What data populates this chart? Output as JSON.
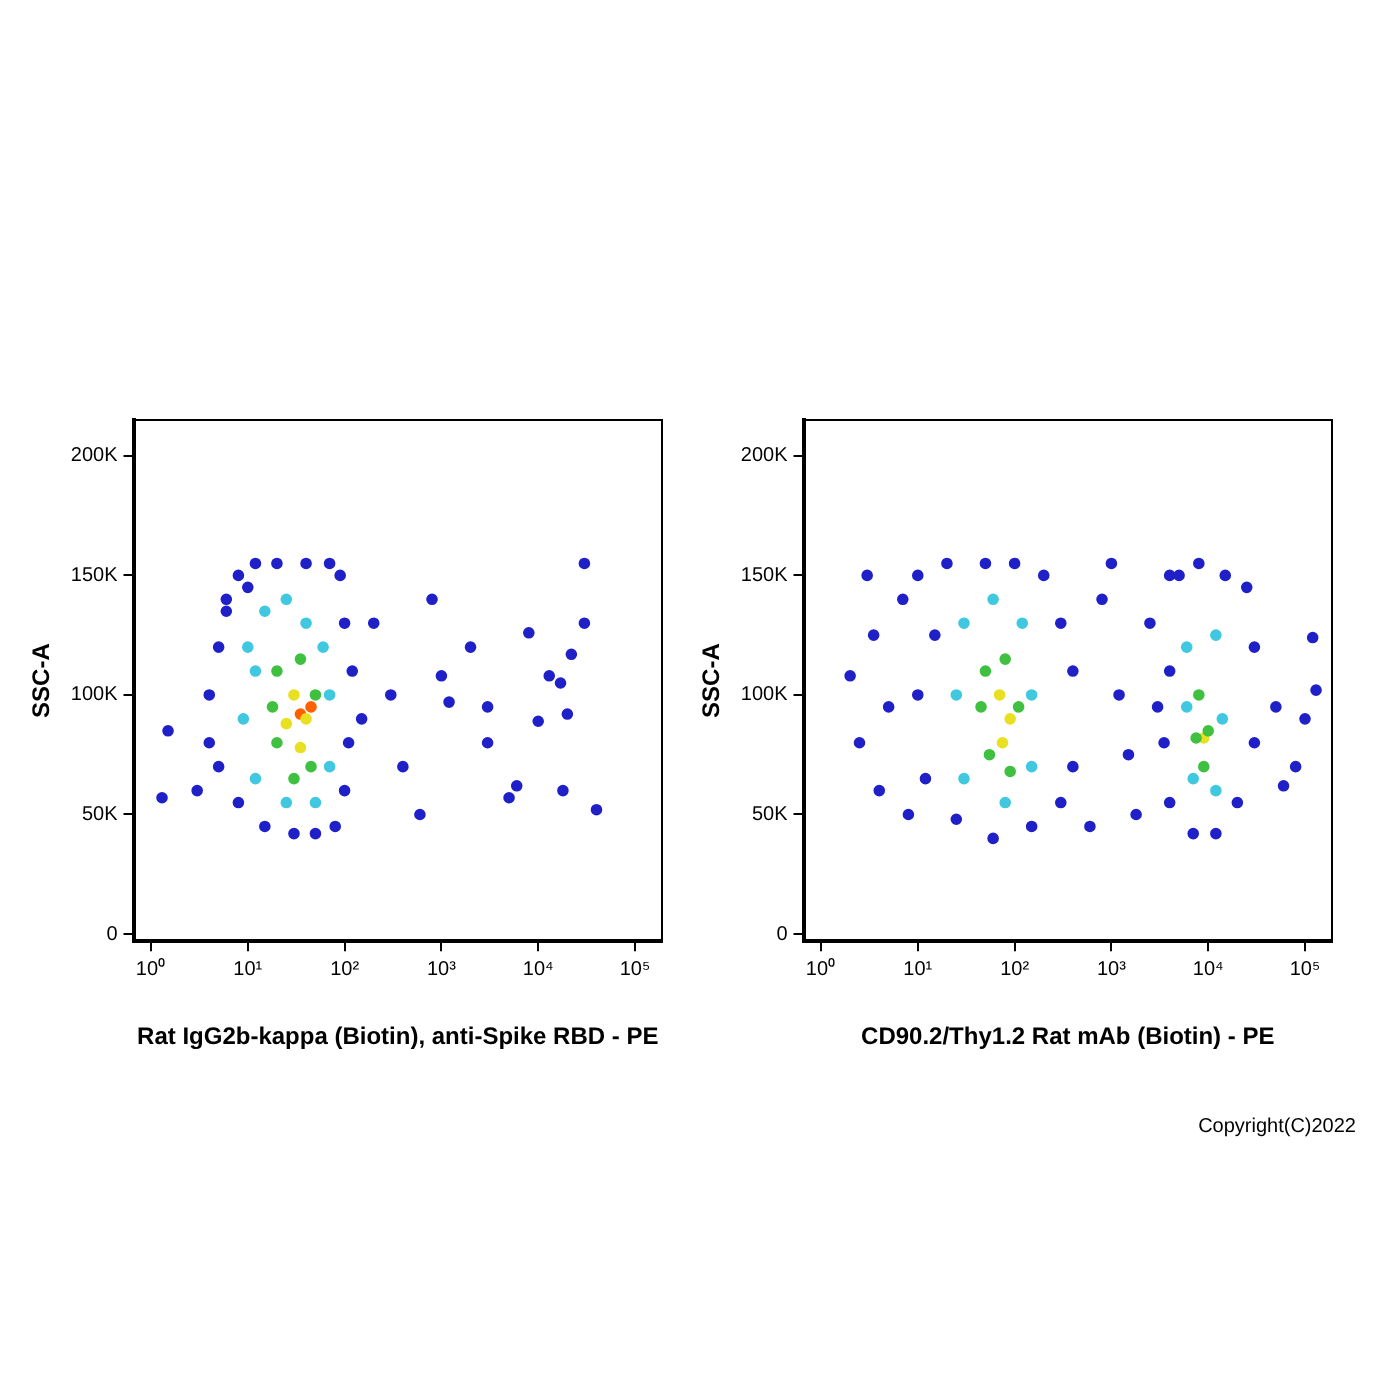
{
  "chart_data": [
    {
      "type": "scatter",
      "xlabel": "Rat IgG2b-kappa (Biotin), anti-Spike RBD - PE",
      "ylabel": "SSC-A",
      "log": "x",
      "grid": false,
      "legend": false,
      "marker": "circle",
      "xlim": [
        0.66,
        190000
      ],
      "xticks": [
        {
          "value": 1,
          "label": "10⁰"
        },
        {
          "value": 10,
          "label": "10¹"
        },
        {
          "value": 100,
          "label": "10²"
        },
        {
          "value": 1000,
          "label": "10³"
        },
        {
          "value": 10000,
          "label": "10⁴"
        },
        {
          "value": 100000,
          "label": "10⁵"
        }
      ],
      "ylim": [
        -3000,
        215000
      ],
      "yticks": [
        {
          "value": 0,
          "label": "0"
        },
        {
          "value": 50000,
          "label": "50K"
        },
        {
          "value": 100000,
          "label": "100K"
        },
        {
          "value": 150000,
          "label": "150K"
        },
        {
          "value": 200000,
          "label": "200K"
        }
      ],
      "series": [
        {
          "color": "#2020c8",
          "x": [
            3,
            4,
            5,
            6,
            8,
            12,
            20,
            40,
            70,
            90,
            100,
            120,
            110,
            100,
            80,
            50,
            30,
            15,
            8,
            5,
            4,
            1.5,
            1.3,
            6,
            10,
            150,
            200,
            300,
            400,
            600,
            800,
            1000,
            1200,
            2000,
            3000,
            3000,
            5000,
            6000,
            8000,
            10000,
            13000,
            17000,
            18000,
            20000,
            22000,
            30000,
            30000,
            40000
          ],
          "values": [
            60000,
            80000,
            120000,
            140000,
            150000,
            155000,
            155000,
            155000,
            155000,
            150000,
            130000,
            110000,
            80000,
            60000,
            45000,
            42000,
            42000,
            45000,
            55000,
            70000,
            100000,
            85000,
            57000,
            135000,
            145000,
            90000,
            130000,
            100000,
            70000,
            50000,
            140000,
            108000,
            97000,
            120000,
            95000,
            80000,
            57000,
            62000,
            126000,
            89000,
            108000,
            105000,
            60000,
            92000,
            117000,
            155000,
            130000,
            52000
          ]
        },
        {
          "color": "#40c8e0",
          "x": [
            10,
            15,
            25,
            40,
            60,
            70,
            70,
            50,
            25,
            12,
            9,
            12
          ],
          "values": [
            120000,
            135000,
            140000,
            130000,
            120000,
            100000,
            70000,
            55000,
            55000,
            65000,
            90000,
            110000
          ]
        },
        {
          "color": "#40c040",
          "x": [
            20,
            35,
            50,
            45,
            30,
            20,
            18
          ],
          "values": [
            110000,
            115000,
            100000,
            70000,
            65000,
            80000,
            95000
          ]
        },
        {
          "color": "#e8e020",
          "x": [
            30,
            40,
            35,
            25
          ],
          "values": [
            100000,
            90000,
            78000,
            88000
          ]
        },
        {
          "color": "#ff6000",
          "x": [
            35,
            45
          ],
          "values": [
            92000,
            95000
          ]
        }
      ]
    },
    {
      "type": "scatter",
      "xlabel": "CD90.2/Thy1.2 Rat mAb (Biotin) - PE",
      "ylabel": "SSC-A",
      "log": "x",
      "grid": false,
      "legend": false,
      "marker": "circle",
      "xlim": [
        0.66,
        190000
      ],
      "xticks": [
        {
          "value": 1,
          "label": "10⁰"
        },
        {
          "value": 10,
          "label": "10¹"
        },
        {
          "value": 100,
          "label": "10²"
        },
        {
          "value": 1000,
          "label": "10³"
        },
        {
          "value": 10000,
          "label": "10⁴"
        },
        {
          "value": 100000,
          "label": "10⁵"
        }
      ],
      "ylim": [
        -3000,
        215000
      ],
      "yticks": [
        {
          "value": 0,
          "label": "0"
        },
        {
          "value": 50000,
          "label": "50K"
        },
        {
          "value": 100000,
          "label": "100K"
        },
        {
          "value": 150000,
          "label": "150K"
        },
        {
          "value": 200000,
          "label": "200K"
        }
      ],
      "annotations": [
        "Copyright(C)2022"
      ],
      "series": [
        {
          "color": "#2020c8",
          "x": [
            2,
            2.5,
            3,
            3.5,
            4,
            5,
            7,
            8,
            10,
            20,
            50,
            100,
            200,
            300,
            400,
            400,
            300,
            150,
            60,
            25,
            12,
            10,
            15,
            600,
            800,
            1000,
            1200,
            1500,
            1800,
            2500,
            3000,
            4000,
            5000,
            8000,
            15000,
            25000,
            30000,
            30000,
            20000,
            12000,
            7000,
            4000,
            3500,
            4000,
            50000,
            60000,
            80000,
            100000,
            130000,
            120000
          ],
          "values": [
            108000,
            80000,
            150000,
            125000,
            60000,
            95000,
            140000,
            50000,
            150000,
            155000,
            155000,
            155000,
            150000,
            130000,
            110000,
            70000,
            55000,
            45000,
            40000,
            48000,
            65000,
            100000,
            125000,
            45000,
            140000,
            155000,
            100000,
            75000,
            50000,
            130000,
            95000,
            150000,
            150000,
            155000,
            150000,
            145000,
            120000,
            80000,
            55000,
            42000,
            42000,
            55000,
            80000,
            110000,
            95000,
            62000,
            70000,
            90000,
            102000,
            124000
          ]
        },
        {
          "color": "#40c8e0",
          "x": [
            30,
            60,
            120,
            150,
            150,
            80,
            30,
            25,
            6000,
            12000,
            14000,
            12000,
            7000,
            6000
          ],
          "values": [
            130000,
            140000,
            130000,
            100000,
            70000,
            55000,
            65000,
            100000,
            120000,
            125000,
            90000,
            60000,
            65000,
            95000
          ]
        },
        {
          "color": "#40c040",
          "x": [
            50,
            80,
            110,
            90,
            55,
            45,
            8000,
            10000,
            9000,
            7500
          ],
          "values": [
            110000,
            115000,
            95000,
            68000,
            75000,
            95000,
            100000,
            85000,
            70000,
            82000
          ]
        },
        {
          "color": "#e8e020",
          "x": [
            70,
            90,
            75,
            9000
          ],
          "values": [
            100000,
            90000,
            80000,
            82000
          ]
        }
      ]
    }
  ]
}
